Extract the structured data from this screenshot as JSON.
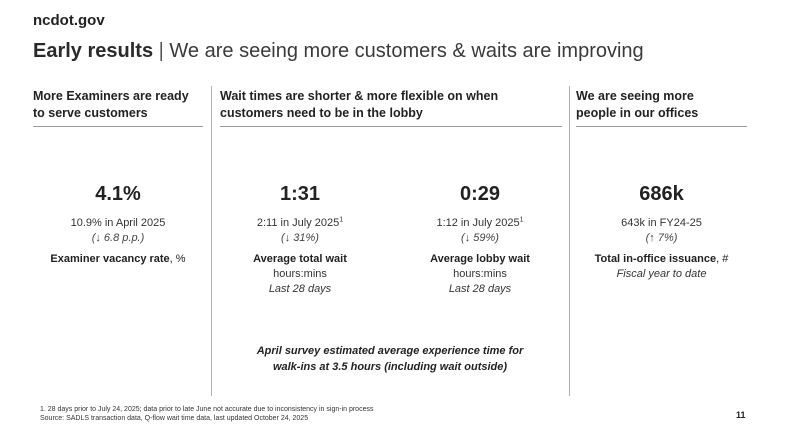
{
  "brand": "ncdot.gov",
  "title": {
    "bold": "Early results",
    "separator": "|",
    "rest": "We are seeing more customers & waits are improving"
  },
  "columns": [
    {
      "heading_line1": "More Examiners are ready",
      "heading_line2": "to serve customers"
    },
    {
      "heading_line1": "Wait times are shorter & more flexible on when",
      "heading_line2": "customers need to be in the lobby"
    },
    {
      "heading_line1": "We are seeing more",
      "heading_line2": "people in our offices"
    }
  ],
  "metrics": [
    {
      "value": "4.1%",
      "comparison": "10.9% in April 2025",
      "change_arrow": "↓",
      "change_text": "6.8 p.p.",
      "label_bold": "Examiner vacancy rate",
      "label_suffix": ", %"
    },
    {
      "value": "1:31",
      "comparison": "2:11 in July 2025",
      "footnote_ref": "1",
      "change_arrow": "↓",
      "change_text": "31%",
      "label_bold": "Average total wait",
      "unit": "hours:mins",
      "period": "Last 28 days"
    },
    {
      "value": "0:29",
      "comparison": "1:12 in July 2025",
      "footnote_ref": "1",
      "change_arrow": "↓",
      "change_text": "59%",
      "label_bold": "Average lobby wait",
      "unit": "hours:mins",
      "period": "Last 28 days"
    },
    {
      "value": "686k",
      "comparison": "643k in FY24-25",
      "change_arrow": "↑",
      "change_text": "7%",
      "label_bold": "Total in-office issuance",
      "label_suffix": ", #",
      "period": "Fiscal year to date"
    }
  ],
  "survey_note": {
    "line1": "April survey estimated average experience time for",
    "line2": "walk-ins at 3.5 hours (including wait outside)"
  },
  "footnotes": {
    "note1": "1. 28 days prior to July 24, 2025; data prior to late June not accurate due to inconsistency in sign-in process",
    "source": "Source: SADLS transaction data, Q-flow wait time data, last updated October 24, 2025"
  },
  "page_number": "11"
}
